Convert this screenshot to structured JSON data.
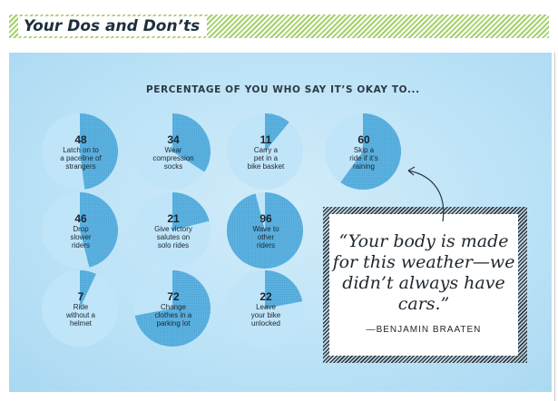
{
  "header": {
    "title": "Your Dos and Don’ts"
  },
  "chart_data": {
    "type": "pie",
    "title": "PERCENTAGE OF YOU WHO SAY IT’S OKAY TO...",
    "unit": "percent",
    "items": [
      {
        "value": 48,
        "value_text": "48",
        "label": "Latch on to\na paceline of\nstrangers"
      },
      {
        "value": 34,
        "value_text": "34",
        "label": "Wear\ncompression\nsocks"
      },
      {
        "value": 11,
        "value_text": "11",
        "label": "Carry a\npet in a\nbike basket"
      },
      {
        "value": 60,
        "value_text": "60",
        "label": "Skip a\nride if it’s\nraining"
      },
      {
        "value": 46,
        "value_text": "46",
        "label": "Drop\nslower\nriders"
      },
      {
        "value": 21,
        "value_text": "21",
        "label": "Give victory\nsalutes on\nsolo rides"
      },
      {
        "value": 96,
        "value_text": "96",
        "label": "Wave to\nother\nriders"
      },
      {
        "value": 7,
        "value_text": "7",
        "label": "Ride\nwithout a\nhelmet"
      },
      {
        "value": 72,
        "value_text": "72",
        "label": "Change\nclothes in a\nparking lot"
      },
      {
        "value": 22,
        "value_text": "22",
        "label": "Leave\nyour bike\nunlocked"
      }
    ]
  },
  "quote": {
    "text": "“Your body is made for this weather—we didn’t always have cars.”",
    "attribution": "—BENJAMIN BRAATEN"
  },
  "colors": {
    "pie_fill": "#5cb3e2",
    "pie_base": "#c0e5f8",
    "header_stripe": "#a6d16a",
    "panel_bg": "#bfe4f7"
  }
}
